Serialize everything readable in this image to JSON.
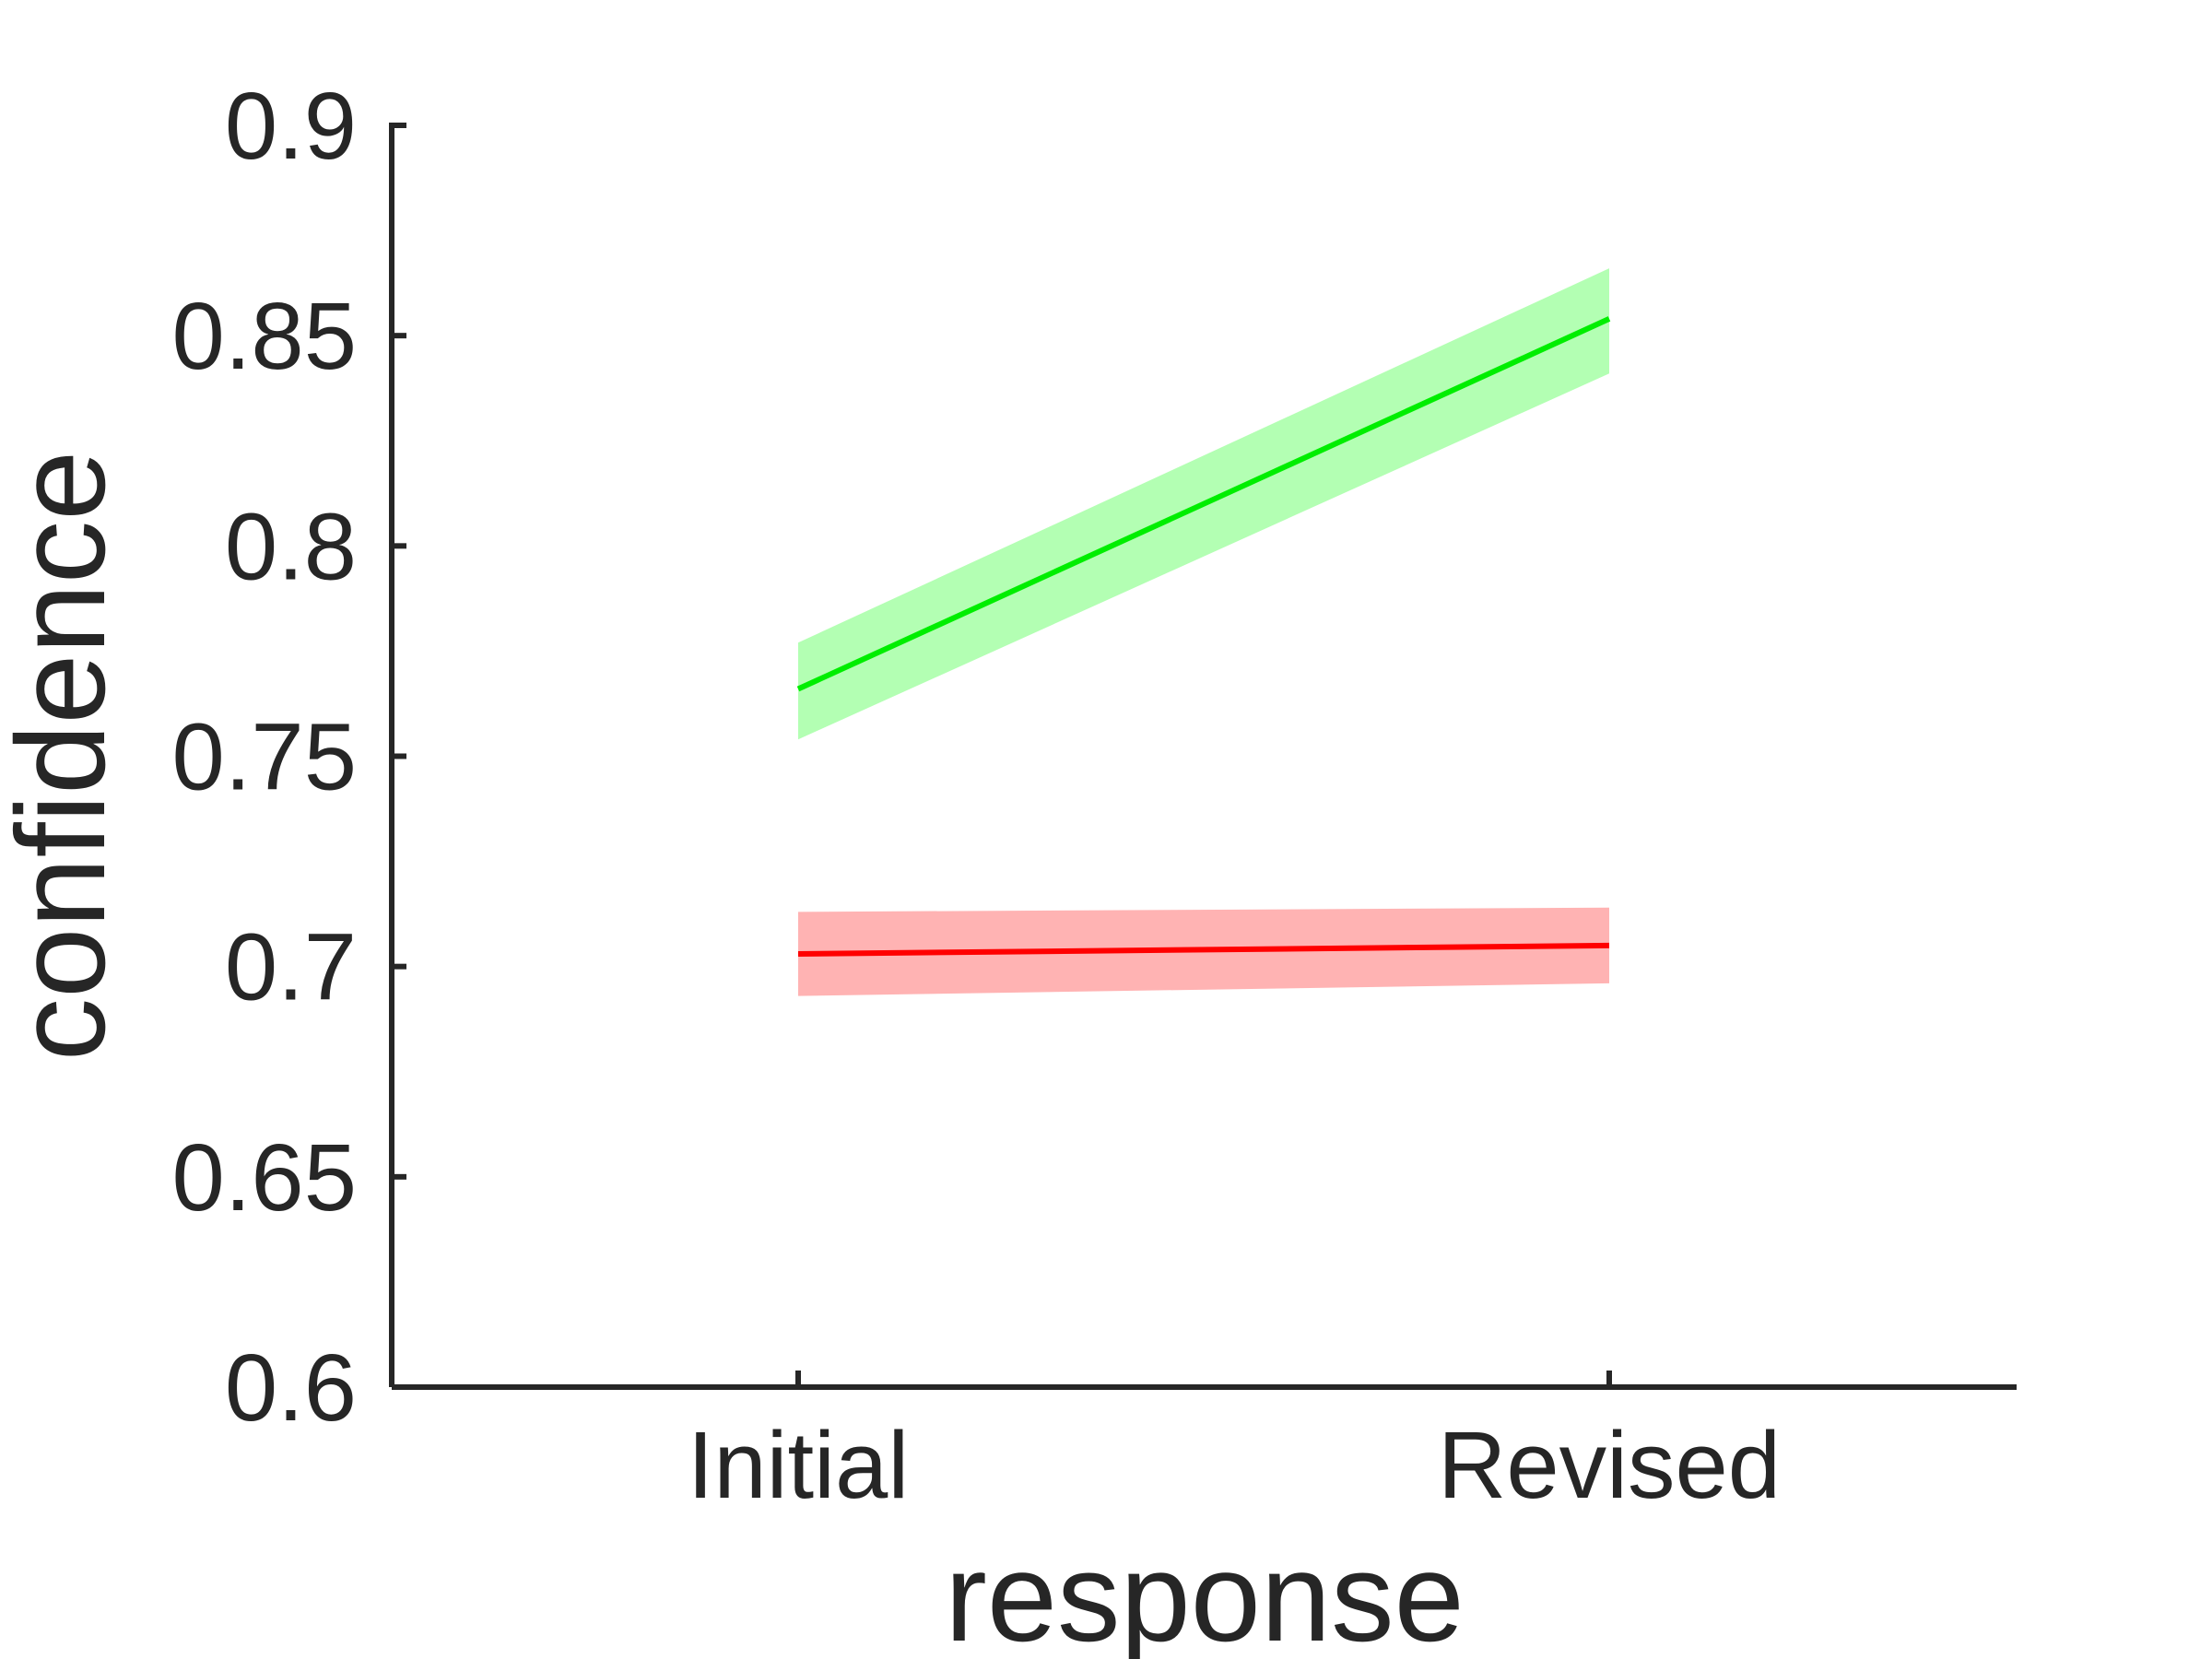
{
  "chart_data": {
    "type": "line",
    "xlabel": "response",
    "ylabel": "confidence",
    "categories": [
      "Initial",
      "Revised"
    ],
    "ylim": [
      0.6,
      0.9
    ],
    "yticks": [
      0.6,
      0.65,
      0.7,
      0.75,
      0.8,
      0.85,
      0.9
    ],
    "ytick_labels": [
      "0.6",
      "0.65",
      "0.7",
      "0.75",
      "0.8",
      "0.85",
      "0.9"
    ],
    "grid": false,
    "series": [
      {
        "color": "#00ee00",
        "band_color": "#b3ffb3",
        "values": [
          0.766,
          0.854
        ],
        "lower": [
          0.754,
          0.841
        ],
        "upper": [
          0.777,
          0.866
        ]
      },
      {
        "color": "#ff0000",
        "band_color": "#ffb3b3",
        "values": [
          0.703,
          0.705
        ],
        "lower": [
          0.693,
          0.696
        ],
        "upper": [
          0.713,
          0.714
        ]
      }
    ]
  }
}
